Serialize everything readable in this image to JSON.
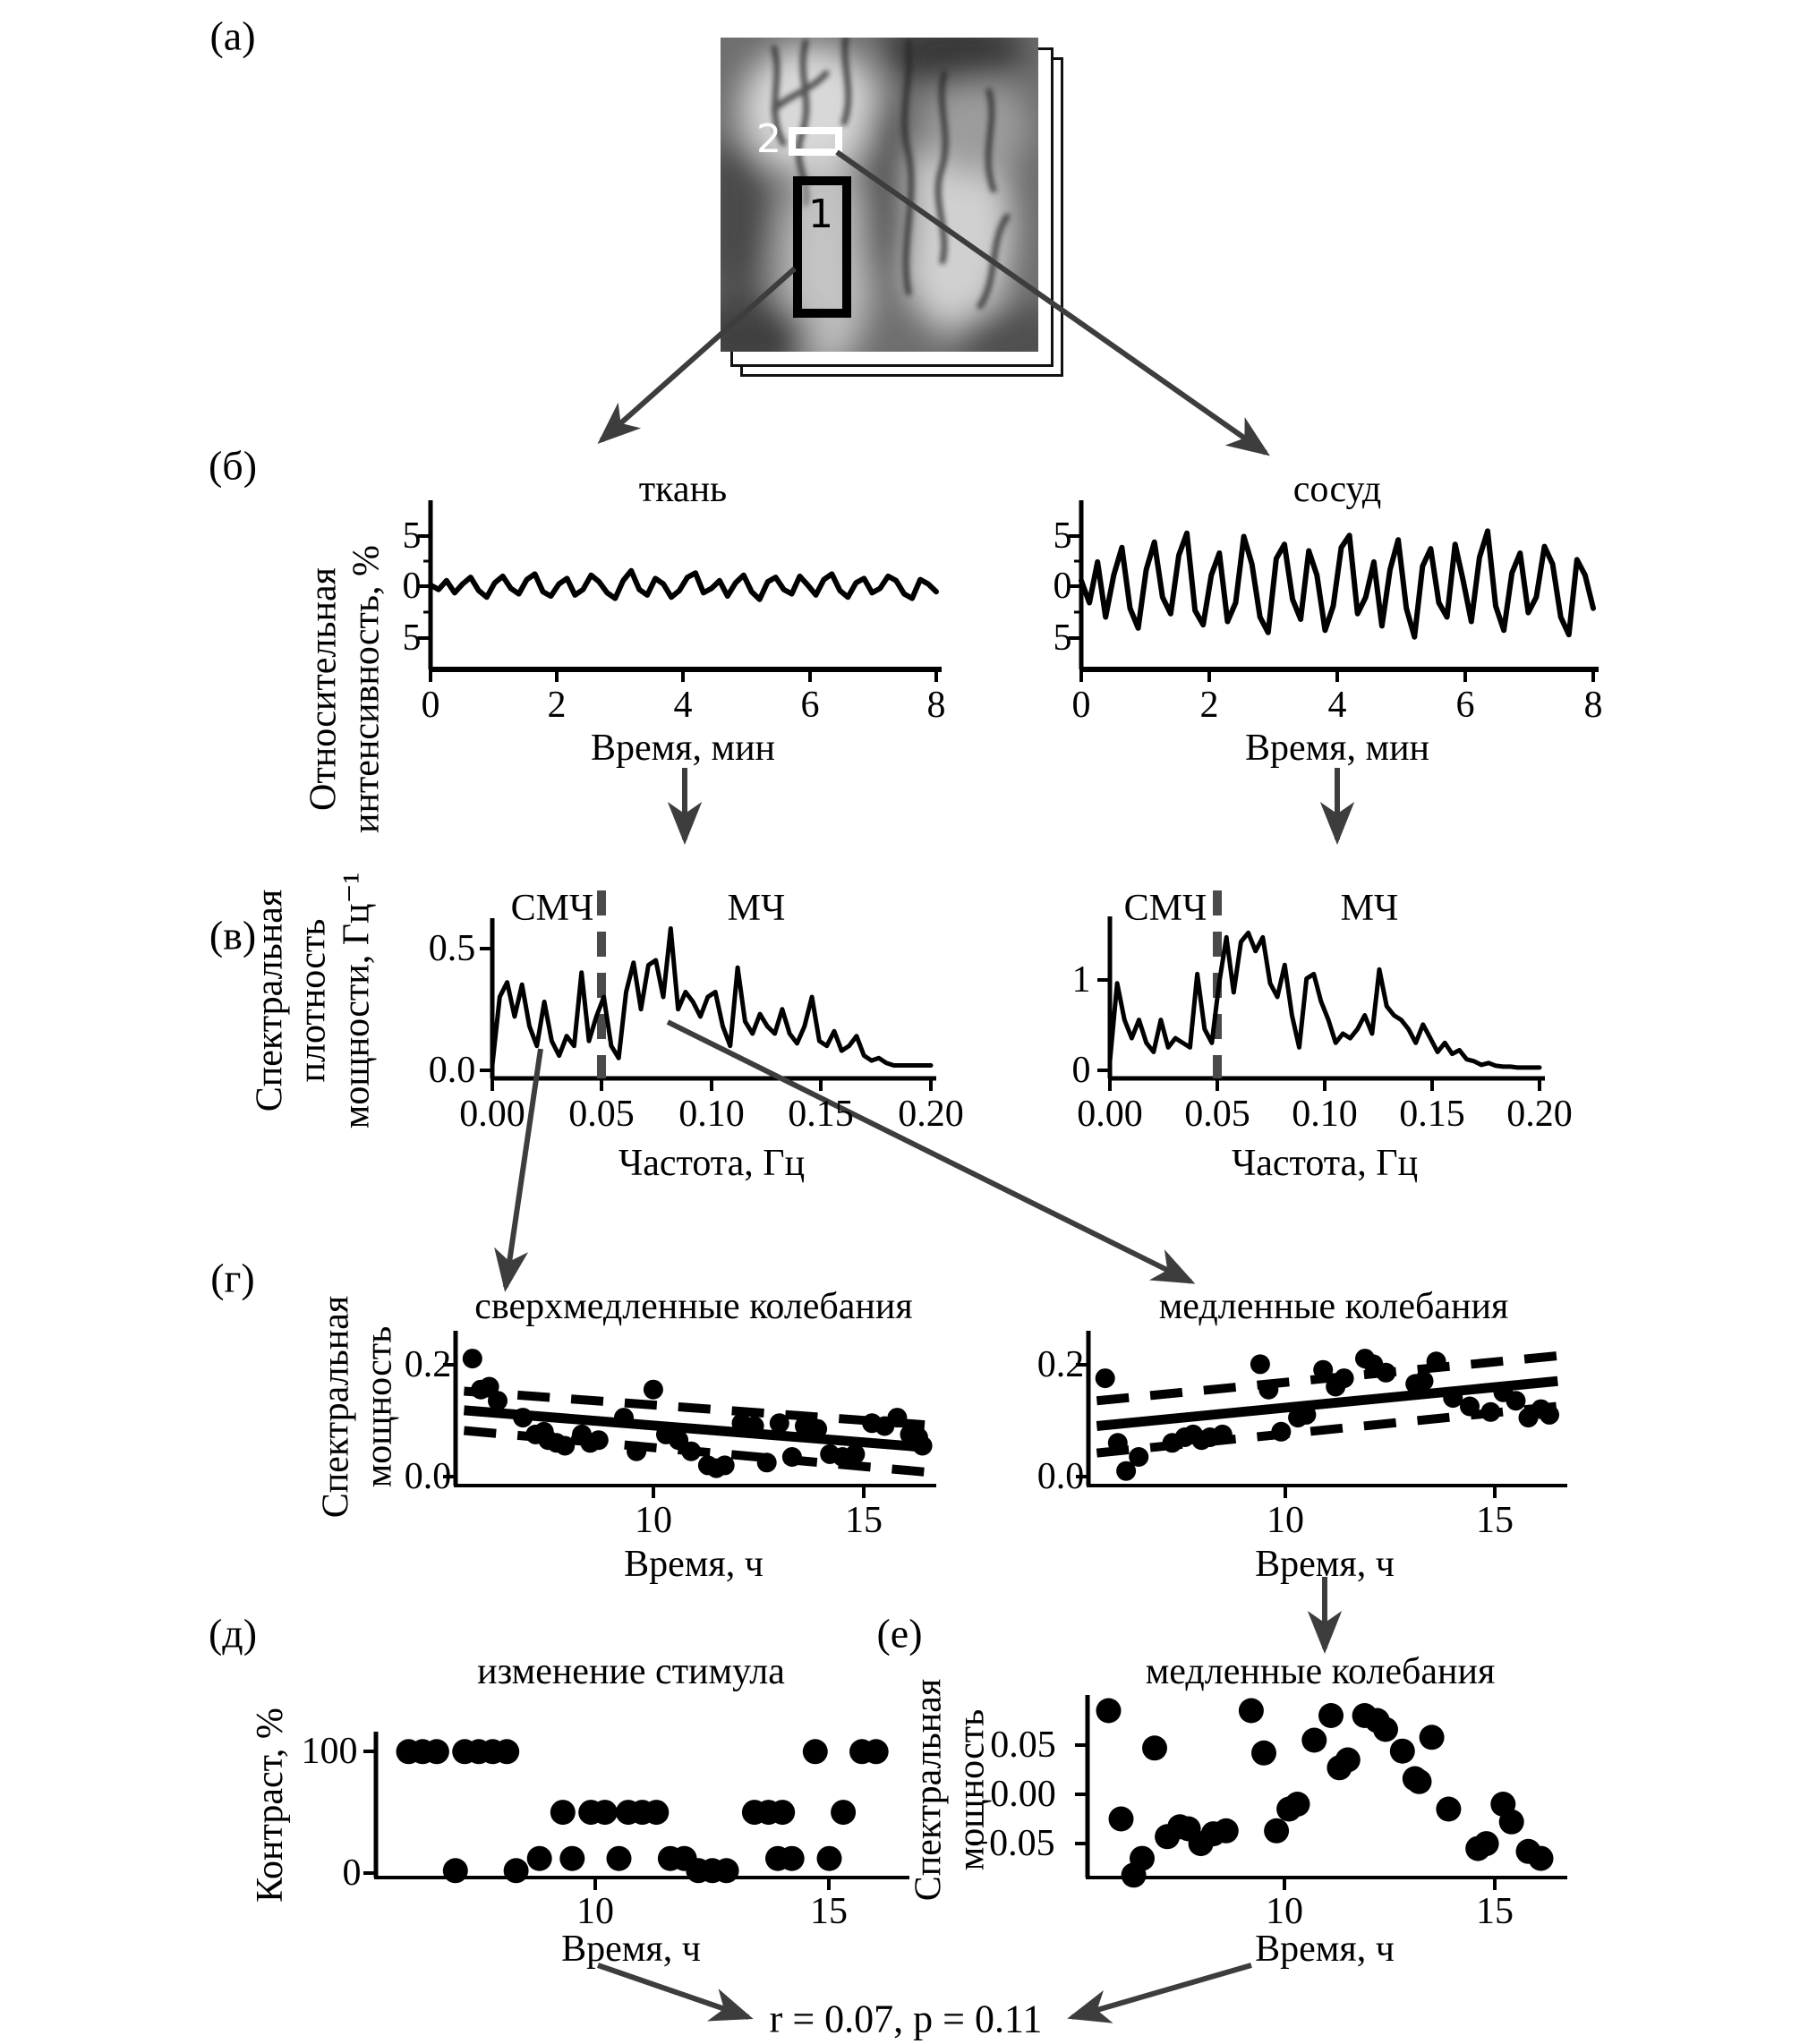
{
  "figure": {
    "panel_labels": {
      "a": "(а)",
      "b": "(б)",
      "v": "(в)",
      "g": "(г)",
      "d": "(д)",
      "e": "(е)"
    },
    "correlation_note": "r = 0.07, p = 0.11",
    "colors": {
      "ink": "#000000",
      "arrow": "#3d3d3d",
      "band_divider": "#4a4a4a",
      "background": "#ffffff"
    }
  },
  "brain": {
    "region_1_label": "1",
    "region_2_label": "2"
  },
  "chart_data": [
    {
      "id": "tissue_timeseries",
      "type": "line",
      "title": "ткань",
      "ylabel_lines": [
        "Относительная",
        "интенсивность, %"
      ],
      "xlabel": "Время, мин",
      "yticks": [
        "5",
        "0",
        "5"
      ],
      "xticks": [
        "0",
        "2",
        "4",
        "6",
        "8"
      ],
      "xlim": [
        0,
        8
      ],
      "ylim": [
        -7.3,
        7.3
      ],
      "grid": false,
      "values": [
        0.1,
        -0.3,
        0.5,
        -0.6,
        0.2,
        0.8,
        -0.4,
        -1.0,
        0.3,
        0.9,
        -0.2,
        -0.7,
        0.6,
        1.1,
        -0.5,
        -0.9,
        0.2,
        0.7,
        -0.8,
        -0.3,
        1.0,
        0.4,
        -0.6,
        -1.1,
        0.5,
        1.4,
        -0.3,
        -0.8,
        0.7,
        0.2,
        -1.0,
        -0.4,
        0.8,
        1.2,
        -0.6,
        -0.2,
        0.5,
        -0.9,
        0.3,
        1.0,
        -0.5,
        -1.2,
        0.4,
        0.8,
        -0.3,
        -0.7,
        0.9,
        0.1,
        -0.8,
        0.6,
        1.1,
        -0.4,
        -1.0,
        0.3,
        0.7,
        -0.6,
        -0.2,
        0.9,
        0.5,
        -0.7,
        -1.1,
        0.6,
        0.2,
        -0.5
      ]
    },
    {
      "id": "vessel_timeseries",
      "type": "line",
      "title": "сосуд",
      "ylabel_lines": [],
      "xlabel": "Время, мин",
      "yticks": [
        "5",
        "0",
        "5"
      ],
      "xticks": [
        "0",
        "2",
        "4",
        "6",
        "8"
      ],
      "xlim": [
        0,
        8
      ],
      "ylim": [
        -7.3,
        7.3
      ],
      "grid": false,
      "values": [
        0.5,
        -1.5,
        2.2,
        -2.8,
        1.0,
        3.5,
        -2.0,
        -3.8,
        1.5,
        4.0,
        -1.0,
        -2.5,
        2.8,
        4.8,
        -2.2,
        -3.5,
        1.0,
        3.0,
        -3.2,
        -1.5,
        4.5,
        2.0,
        -2.8,
        -4.2,
        2.5,
        3.8,
        -1.2,
        -3.0,
        3.2,
        1.0,
        -4.0,
        -1.8,
        3.5,
        4.6,
        -2.5,
        -1.0,
        2.2,
        -3.6,
        1.5,
        4.2,
        -2.0,
        -4.6,
        1.8,
        3.4,
        -1.5,
        -2.8,
        3.8,
        0.5,
        -3.2,
        2.6,
        5.0,
        -1.8,
        -4.0,
        1.2,
        3.0,
        -2.4,
        -1.0,
        3.6,
        2.0,
        -2.8,
        -4.4,
        2.4,
        1.0,
        -2.0
      ]
    },
    {
      "id": "tissue_psd",
      "type": "line",
      "title": "",
      "band_labels": [
        "СМЧ",
        "МЧ"
      ],
      "band_split_hz": 0.05,
      "ylabel_lines": [
        "Спектральная",
        "плотность",
        "мощности, Гц⁻¹"
      ],
      "xlabel": "Частота, Гц",
      "yticks": [
        "0.5",
        "0.0"
      ],
      "xticks": [
        "0.00",
        "0.05",
        "0.10",
        "0.15",
        "0.20"
      ],
      "xlim": [
        0,
        0.2
      ],
      "ylim": [
        0,
        0.6
      ],
      "grid": false,
      "values": [
        0.02,
        0.3,
        0.36,
        0.22,
        0.35,
        0.18,
        0.1,
        0.28,
        0.12,
        0.06,
        0.14,
        0.1,
        0.4,
        0.12,
        0.22,
        0.3,
        0.1,
        0.05,
        0.32,
        0.44,
        0.25,
        0.43,
        0.45,
        0.3,
        0.58,
        0.25,
        0.32,
        0.28,
        0.22,
        0.3,
        0.32,
        0.18,
        0.1,
        0.42,
        0.2,
        0.15,
        0.23,
        0.18,
        0.15,
        0.25,
        0.15,
        0.11,
        0.18,
        0.3,
        0.12,
        0.1,
        0.16,
        0.08,
        0.1,
        0.14,
        0.06,
        0.04,
        0.05,
        0.03,
        0.02,
        0.02,
        0.02,
        0.02,
        0.02,
        0.02
      ]
    },
    {
      "id": "vessel_psd",
      "type": "line",
      "title": "",
      "band_labels": [
        "СМЧ",
        "МЧ"
      ],
      "band_split_hz": 0.05,
      "ylabel_lines": [],
      "xlabel": "Частота, Гц",
      "yticks": [
        "1",
        "0"
      ],
      "xticks": [
        "0.00",
        "0.05",
        "0.10",
        "0.15",
        "0.20"
      ],
      "xlim": [
        0,
        0.2
      ],
      "ylim": [
        0,
        1.62
      ],
      "grid": false,
      "values": [
        0.1,
        0.95,
        0.55,
        0.35,
        0.55,
        0.3,
        0.2,
        0.55,
        0.25,
        0.35,
        0.3,
        0.25,
        1.05,
        0.45,
        0.3,
        0.95,
        1.45,
        0.85,
        1.4,
        1.5,
        1.3,
        1.45,
        0.95,
        0.8,
        1.15,
        0.6,
        0.25,
        1.0,
        1.05,
        0.75,
        0.55,
        0.3,
        0.4,
        0.35,
        0.45,
        0.6,
        0.4,
        1.1,
        0.7,
        0.6,
        0.55,
        0.45,
        0.3,
        0.5,
        0.35,
        0.2,
        0.3,
        0.18,
        0.22,
        0.12,
        0.1,
        0.06,
        0.08,
        0.05,
        0.04,
        0.04,
        0.03,
        0.03,
        0.03,
        0.03
      ]
    },
    {
      "id": "ultraslow_power_vs_time",
      "type": "scatter",
      "title": "сверхмедленные колебания",
      "ylabel_lines": [
        "Спектральная",
        "мощность"
      ],
      "xlabel": "Время, ч",
      "yticks": [
        "0.2",
        "0.0"
      ],
      "xticks": [
        "10",
        "15"
      ],
      "xlim": [
        5.3,
        16.6
      ],
      "ylim": [
        0,
        0.25
      ],
      "grid": false,
      "points": [
        [
          5.7,
          0.21
        ],
        [
          5.9,
          0.155
        ],
        [
          6.1,
          0.16
        ],
        [
          6.3,
          0.135
        ],
        [
          6.9,
          0.105
        ],
        [
          7.2,
          0.075
        ],
        [
          7.4,
          0.08
        ],
        [
          7.5,
          0.065
        ],
        [
          7.7,
          0.06
        ],
        [
          7.9,
          0.055
        ],
        [
          8.3,
          0.075
        ],
        [
          8.5,
          0.06
        ],
        [
          8.7,
          0.065
        ],
        [
          9.3,
          0.105
        ],
        [
          9.6,
          0.045
        ],
        [
          10.0,
          0.155
        ],
        [
          10.3,
          0.075
        ],
        [
          10.6,
          0.065
        ],
        [
          10.9,
          0.045
        ],
        [
          11.3,
          0.02
        ],
        [
          11.5,
          0.015
        ],
        [
          11.7,
          0.02
        ],
        [
          12.1,
          0.095
        ],
        [
          12.4,
          0.09
        ],
        [
          12.7,
          0.025
        ],
        [
          13.0,
          0.095
        ],
        [
          13.3,
          0.035
        ],
        [
          13.6,
          0.09
        ],
        [
          13.9,
          0.085
        ],
        [
          14.2,
          0.04
        ],
        [
          14.5,
          0.035
        ],
        [
          14.8,
          0.04
        ],
        [
          15.2,
          0.095
        ],
        [
          15.5,
          0.09
        ],
        [
          15.8,
          0.105
        ],
        [
          16.1,
          0.075
        ],
        [
          16.3,
          0.07
        ],
        [
          16.4,
          0.055
        ]
      ],
      "trend": [
        [
          5.5,
          0.118
        ],
        [
          16.5,
          0.052
        ]
      ],
      "ci_upper": [
        [
          5.5,
          0.152
        ],
        [
          16.5,
          0.092
        ]
      ],
      "ci_lower": [
        [
          5.5,
          0.082
        ],
        [
          16.5,
          0.008
        ]
      ]
    },
    {
      "id": "slow_power_vs_time",
      "type": "scatter",
      "title": "медленные колебания",
      "ylabel_lines": [],
      "xlabel": "Время, ч",
      "yticks": [
        "0.2",
        "0.0"
      ],
      "xticks": [
        "10",
        "15"
      ],
      "xlim": [
        5.3,
        16.6
      ],
      "ylim": [
        0,
        0.25
      ],
      "grid": false,
      "points": [
        [
          5.7,
          0.175
        ],
        [
          6.0,
          0.06
        ],
        [
          6.2,
          0.01
        ],
        [
          6.5,
          0.035
        ],
        [
          7.3,
          0.06
        ],
        [
          7.6,
          0.07
        ],
        [
          7.8,
          0.075
        ],
        [
          8.0,
          0.065
        ],
        [
          8.2,
          0.07
        ],
        [
          8.5,
          0.075
        ],
        [
          9.4,
          0.2
        ],
        [
          9.6,
          0.155
        ],
        [
          9.9,
          0.08
        ],
        [
          10.3,
          0.105
        ],
        [
          10.5,
          0.11
        ],
        [
          10.9,
          0.19
        ],
        [
          11.2,
          0.16
        ],
        [
          11.4,
          0.175
        ],
        [
          11.9,
          0.21
        ],
        [
          12.1,
          0.2
        ],
        [
          12.4,
          0.185
        ],
        [
          13.1,
          0.165
        ],
        [
          13.3,
          0.17
        ],
        [
          13.6,
          0.205
        ],
        [
          14.0,
          0.14
        ],
        [
          14.4,
          0.125
        ],
        [
          14.9,
          0.115
        ],
        [
          15.2,
          0.15
        ],
        [
          15.5,
          0.135
        ],
        [
          15.8,
          0.105
        ],
        [
          16.1,
          0.12
        ],
        [
          16.3,
          0.11
        ]
      ],
      "trend": [
        [
          5.5,
          0.09
        ],
        [
          16.5,
          0.17
        ]
      ],
      "ci_upper": [
        [
          5.5,
          0.135
        ],
        [
          16.5,
          0.215
        ]
      ],
      "ci_lower": [
        [
          5.5,
          0.042
        ],
        [
          16.5,
          0.125
        ]
      ]
    },
    {
      "id": "stimulus_contrast_vs_time",
      "type": "scatter",
      "title": "изменение стимула",
      "ylabel_lines": [
        "Контраст, %"
      ],
      "xlabel": "Время, ч",
      "yticks": [
        "100",
        "0"
      ],
      "xticks": [
        "10",
        "15"
      ],
      "xlim": [
        5.3,
        16.6
      ],
      "ylim": [
        0,
        112
      ],
      "grid": false,
      "points": [
        [
          6.0,
          100
        ],
        [
          6.3,
          100
        ],
        [
          6.6,
          100
        ],
        [
          7.2,
          100
        ],
        [
          7.5,
          100
        ],
        [
          7.8,
          100
        ],
        [
          8.1,
          100
        ],
        [
          14.7,
          100
        ],
        [
          15.7,
          100
        ],
        [
          16.0,
          100
        ],
        [
          9.3,
          50
        ],
        [
          9.9,
          50
        ],
        [
          10.2,
          50
        ],
        [
          10.7,
          50
        ],
        [
          11.0,
          50
        ],
        [
          11.3,
          50
        ],
        [
          13.4,
          50
        ],
        [
          13.7,
          50
        ],
        [
          14.0,
          50
        ],
        [
          15.3,
          50
        ],
        [
          8.8,
          12
        ],
        [
          9.5,
          12
        ],
        [
          10.5,
          12
        ],
        [
          11.6,
          12
        ],
        [
          11.9,
          12
        ],
        [
          13.9,
          12
        ],
        [
          14.2,
          12
        ],
        [
          15.0,
          12
        ],
        [
          7.0,
          2
        ],
        [
          8.3,
          2
        ],
        [
          12.2,
          2
        ],
        [
          12.5,
          2
        ],
        [
          12.8,
          2
        ]
      ]
    },
    {
      "id": "slow_power_detrended_vs_time",
      "type": "scatter",
      "title": "медленные колебания",
      "ylabel_lines": [
        "Спектральная",
        "мощность"
      ],
      "xlabel": "Время, ч",
      "yticks": [
        "0.05",
        "0.00",
        "−0.05"
      ],
      "xticks": [
        "10",
        "15"
      ],
      "xlim": [
        5.3,
        16.6
      ],
      "ylim": [
        -0.0845,
        0.0955
      ],
      "grid": false,
      "points": [
        [
          5.8,
          0.085
        ],
        [
          6.1,
          -0.025
        ],
        [
          6.4,
          -0.082
        ],
        [
          6.6,
          -0.065
        ],
        [
          6.9,
          0.047
        ],
        [
          7.2,
          -0.043
        ],
        [
          7.5,
          -0.033
        ],
        [
          7.7,
          -0.035
        ],
        [
          8.0,
          -0.05
        ],
        [
          8.3,
          -0.04
        ],
        [
          8.6,
          -0.037
        ],
        [
          9.2,
          0.085
        ],
        [
          9.5,
          0.042
        ],
        [
          9.8,
          -0.037
        ],
        [
          10.1,
          -0.015
        ],
        [
          10.3,
          -0.01
        ],
        [
          10.7,
          0.055
        ],
        [
          11.1,
          0.08
        ],
        [
          11.3,
          0.027
        ],
        [
          11.5,
          0.035
        ],
        [
          11.9,
          0.08
        ],
        [
          12.2,
          0.075
        ],
        [
          12.4,
          0.066
        ],
        [
          12.8,
          0.044
        ],
        [
          13.1,
          0.016
        ],
        [
          13.2,
          0.013
        ],
        [
          13.5,
          0.058
        ],
        [
          13.9,
          -0.015
        ],
        [
          14.6,
          -0.055
        ],
        [
          14.8,
          -0.05
        ],
        [
          15.2,
          -0.01
        ],
        [
          15.4,
          -0.028
        ],
        [
          15.8,
          -0.058
        ],
        [
          16.1,
          -0.065
        ]
      ]
    }
  ]
}
